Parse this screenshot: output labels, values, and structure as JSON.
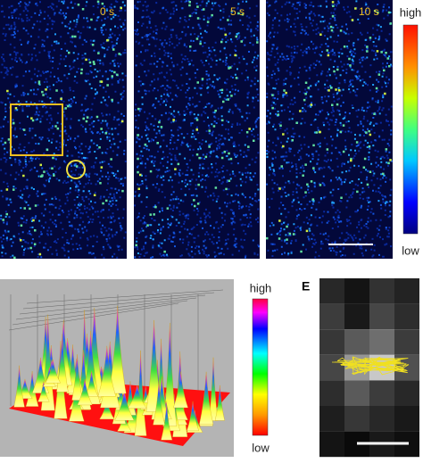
{
  "panels": {
    "top": {
      "times": [
        "0 s",
        "5 s",
        "10 s"
      ],
      "colorbar": {
        "high": "high",
        "low": "low"
      }
    },
    "surface": {
      "colorbar": {
        "high": "high",
        "low": "low"
      }
    },
    "e": {
      "label": "E"
    }
  }
}
